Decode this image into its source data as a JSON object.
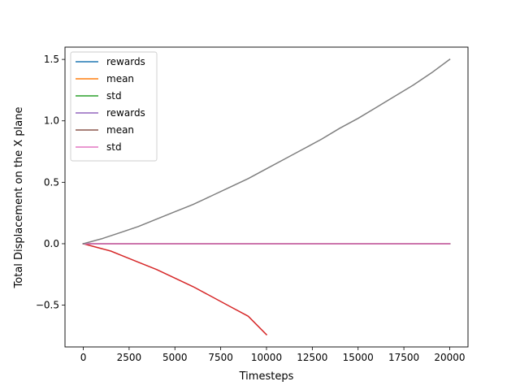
{
  "chart_data": {
    "type": "line",
    "title": "",
    "xlabel": "Timesteps",
    "ylabel": "Total Displacement on the X plane",
    "xlim": [
      -1000,
      21000
    ],
    "ylim": [
      -0.84,
      1.6
    ],
    "xticks": [
      0,
      2500,
      5000,
      7500,
      10000,
      12500,
      15000,
      17500,
      20000
    ],
    "yticks": [
      -0.5,
      0.0,
      0.5,
      1.0,
      1.5
    ],
    "xtick_labels": [
      "0",
      "2500",
      "5000",
      "7500",
      "10000",
      "12500",
      "15000",
      "17500",
      "20000"
    ],
    "ytick_labels": [
      "−0.5",
      "0.0",
      "0.5",
      "1.0",
      "1.5"
    ],
    "grid": false,
    "legend_position": "upper-left",
    "series": [
      {
        "name": "rewards",
        "color": "#1f77b4",
        "x": [
          0,
          20000
        ],
        "y": [
          0.0,
          0.0
        ]
      },
      {
        "name": "mean",
        "color": "#ff7f0e",
        "x": [
          0,
          20000
        ],
        "y": [
          0.0,
          0.0
        ]
      },
      {
        "name": "std",
        "color": "#2ca02c",
        "x": [
          0,
          20000
        ],
        "y": [
          0.0,
          0.0
        ]
      },
      {
        "name": "",
        "color": "#d62728",
        "x": [
          0,
          500,
          1000,
          1500,
          2000,
          3000,
          4000,
          5000,
          6000,
          7000,
          8000,
          9000,
          10000
        ],
        "y": [
          0.0,
          -0.02,
          -0.04,
          -0.06,
          -0.09,
          -0.15,
          -0.21,
          -0.28,
          -0.35,
          -0.43,
          -0.51,
          -0.59,
          -0.74
        ]
      },
      {
        "name": "rewards",
        "color": "#9467bd",
        "x": [
          0,
          20000
        ],
        "y": [
          0.0,
          0.0
        ]
      },
      {
        "name": "mean",
        "color": "#8c564b",
        "x": [
          0,
          20000
        ],
        "y": [
          0.0,
          0.0
        ]
      },
      {
        "name": "std",
        "color": "#e377c2",
        "x": [
          0,
          20000
        ],
        "y": [
          0.0,
          0.0
        ]
      },
      {
        "name": "",
        "color": "#7f7f7f",
        "x": [
          0,
          1000,
          2000,
          3000,
          4000,
          5000,
          6000,
          7000,
          8000,
          9000,
          10000,
          11000,
          12000,
          13000,
          14000,
          15000,
          16000,
          17000,
          18000,
          19000,
          20000
        ],
        "y": [
          0.0,
          0.04,
          0.09,
          0.14,
          0.2,
          0.26,
          0.32,
          0.39,
          0.46,
          0.53,
          0.61,
          0.69,
          0.77,
          0.85,
          0.94,
          1.02,
          1.11,
          1.2,
          1.29,
          1.39,
          1.5
        ]
      }
    ]
  }
}
